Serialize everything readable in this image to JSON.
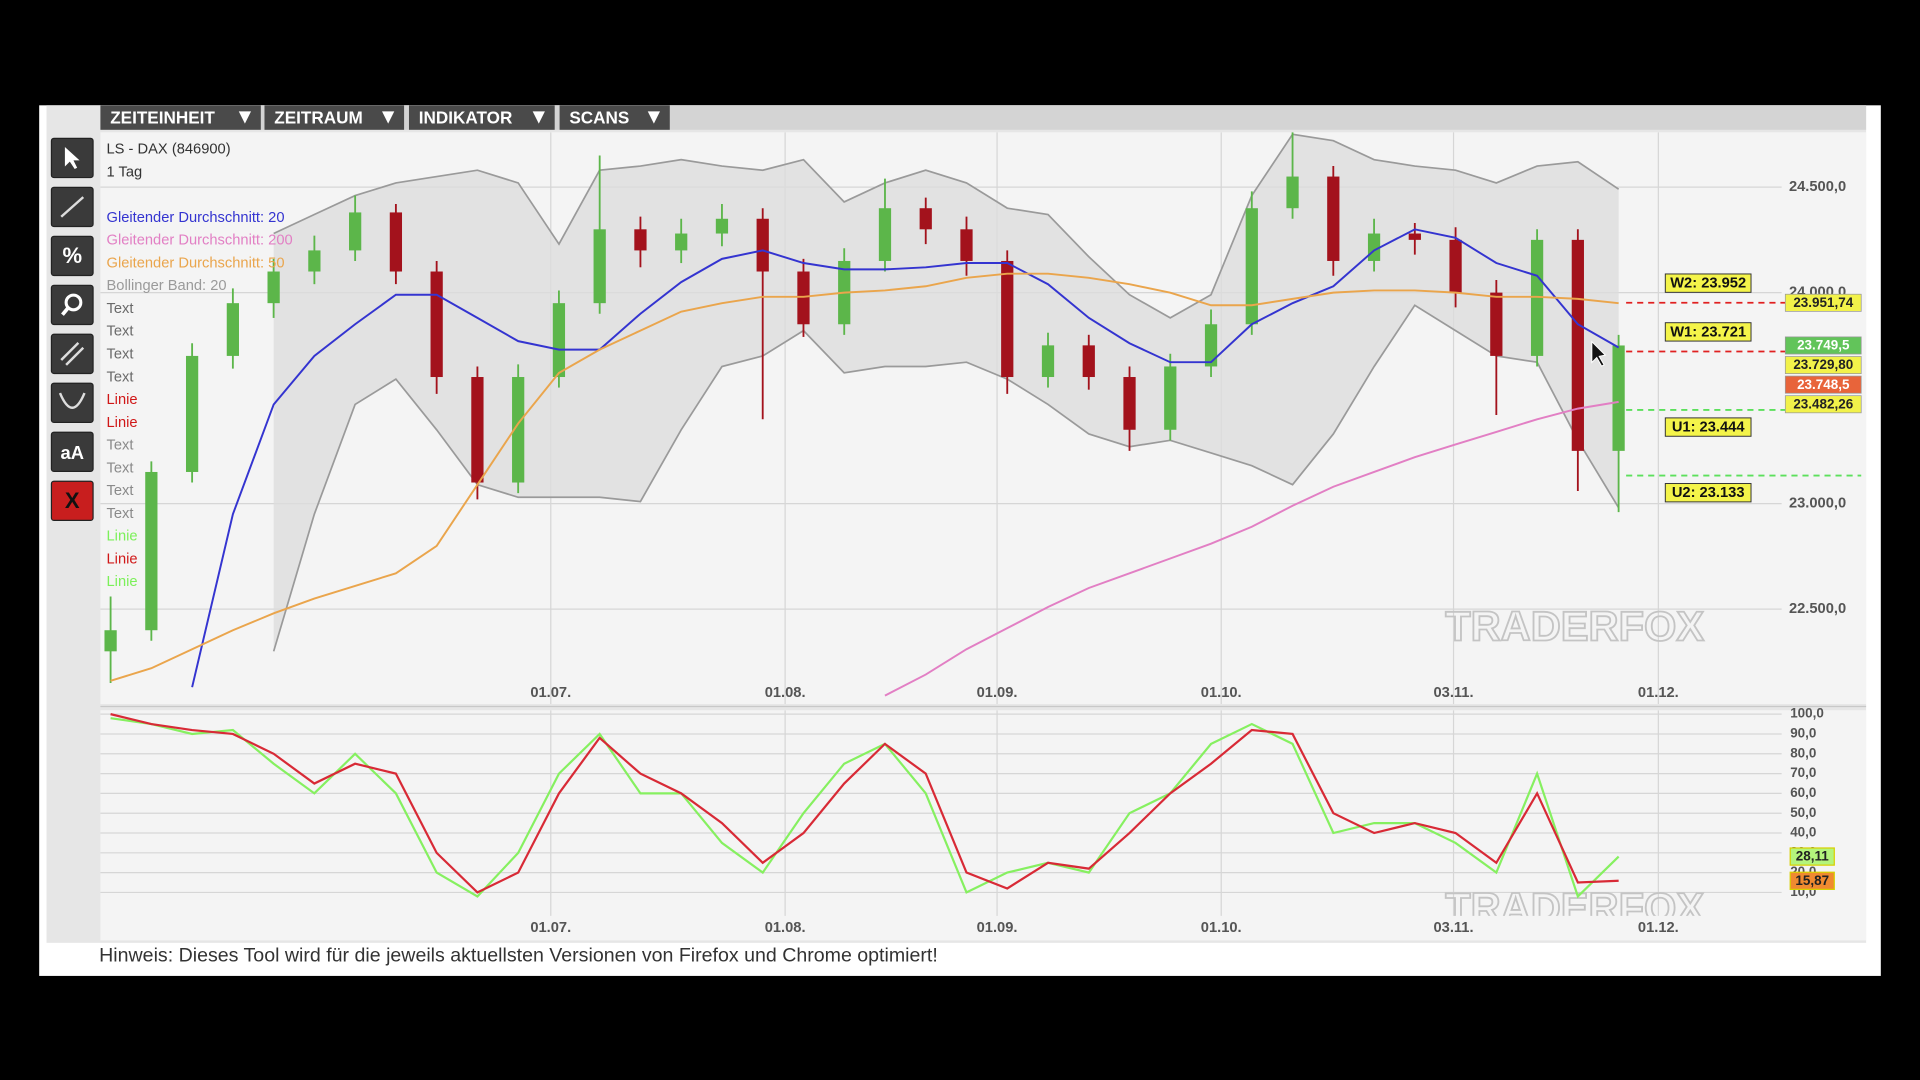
{
  "menu": [
    "ZEITEINHEIT",
    "ZEITRAUM",
    "INDIKATOR",
    "SCANS"
  ],
  "toolbar": {
    "percent": "%",
    "text": "aA",
    "close": "X"
  },
  "watermark": "TRADERFOX",
  "footer": "Hinweis: Dieses Tool wird für die jeweils aktuellsten Versionen von Firefox und Chrome optimiert!",
  "chart_data": [
    {
      "type": "candlestick",
      "title": "LS - DAX (846900)",
      "subtitle": "1 Tag",
      "x": [
        1,
        5,
        9,
        13,
        17,
        21,
        25,
        29,
        33,
        37,
        41,
        45,
        49,
        53,
        57,
        61,
        65,
        69,
        73,
        77,
        81,
        85,
        89,
        93,
        97,
        101,
        105,
        109,
        113,
        117,
        121,
        125,
        129,
        133,
        137,
        141,
        145,
        149
      ],
      "candles": [
        [
          22300,
          22560,
          22150,
          22400
        ],
        [
          22400,
          23200,
          22350,
          23150
        ],
        [
          23150,
          23760,
          23100,
          23700
        ],
        [
          23700,
          24020,
          23640,
          23950
        ],
        [
          23950,
          24160,
          23880,
          24100
        ],
        [
          24100,
          24270,
          24040,
          24200
        ],
        [
          24200,
          24460,
          24150,
          24380
        ],
        [
          24380,
          24420,
          24040,
          24100
        ],
        [
          24100,
          24150,
          23520,
          23600
        ],
        [
          23600,
          23650,
          23020,
          23100
        ],
        [
          23100,
          23660,
          23050,
          23600
        ],
        [
          23600,
          24010,
          23550,
          23950
        ],
        [
          23950,
          24650,
          23900,
          24300
        ],
        [
          24300,
          24360,
          24120,
          24200
        ],
        [
          24200,
          24350,
          24140,
          24280
        ],
        [
          24280,
          24420,
          24220,
          24350
        ],
        [
          24350,
          24400,
          23400,
          24100
        ],
        [
          24100,
          24160,
          23790,
          23850
        ],
        [
          23850,
          24210,
          23800,
          24150
        ],
        [
          24150,
          24540,
          24100,
          24400
        ],
        [
          24400,
          24450,
          24230,
          24300
        ],
        [
          24300,
          24360,
          24080,
          24150
        ],
        [
          24150,
          24200,
          23520,
          23600
        ],
        [
          23600,
          23810,
          23550,
          23750
        ],
        [
          23750,
          23800,
          23540,
          23600
        ],
        [
          23600,
          23650,
          23250,
          23350
        ],
        [
          23350,
          23710,
          23300,
          23650
        ],
        [
          23650,
          23920,
          23600,
          23850
        ],
        [
          23850,
          24480,
          23800,
          24400
        ],
        [
          24400,
          24760,
          24350,
          24550
        ],
        [
          24550,
          24600,
          24080,
          24150
        ],
        [
          24150,
          24350,
          24100,
          24280
        ],
        [
          24280,
          24330,
          24180,
          24250
        ],
        [
          24250,
          24310,
          23930,
          24000
        ],
        [
          24000,
          24060,
          23420,
          23700
        ],
        [
          23700,
          24300,
          23650,
          24250
        ],
        [
          24250,
          24300,
          23060,
          23250
        ],
        [
          23250,
          23800,
          22960,
          23749.5
        ]
      ],
      "up_color": "#5cb64a",
      "down_color": "#a3121c",
      "series": [
        {
          "name": "Gleitender Durchschnitt: 20",
          "color": "#3434d0",
          "values": [
            null,
            null,
            22130,
            22950,
            23470,
            23700,
            23850,
            23990,
            23990,
            23880,
            23770,
            23730,
            23730,
            23900,
            24050,
            24160,
            24200,
            24140,
            24110,
            24110,
            24120,
            24140,
            24140,
            24040,
            23880,
            23760,
            23670,
            23670,
            23850,
            23950,
            24030,
            24200,
            24300,
            24260,
            24140,
            24080,
            23850,
            23740
          ]
        },
        {
          "name": "Gleitender Durchschnitt: 200",
          "color": "#e27fc4",
          "values": [
            null,
            null,
            null,
            null,
            null,
            null,
            null,
            null,
            null,
            null,
            null,
            null,
            null,
            null,
            null,
            null,
            null,
            null,
            null,
            22090,
            22190,
            22310,
            22410,
            22510,
            22600,
            22670,
            22740,
            22810,
            22890,
            22990,
            23080,
            23150,
            23220,
            23280,
            23340,
            23400,
            23450,
            23482.26
          ]
        },
        {
          "name": "Gleitender Durchschnitt: 50",
          "color": "#eaa54c",
          "values": [
            22160,
            22220,
            22310,
            22400,
            22480,
            22550,
            22610,
            22670,
            22800,
            23090,
            23380,
            23620,
            23730,
            23820,
            23910,
            23950,
            23980,
            23980,
            24000,
            24010,
            24030,
            24070,
            24090,
            24090,
            24070,
            24040,
            24000,
            23940,
            23940,
            23970,
            24000,
            24010,
            24010,
            24000,
            23980,
            23980,
            23970,
            23950
          ]
        },
        {
          "name": "Bollinger Band: 20",
          "color": "#9a9a9a",
          "values": [
            null,
            null,
            null,
            null,
            24280,
            24370,
            24460,
            24520,
            24550,
            24580,
            24520,
            24230,
            24580,
            24600,
            24630,
            24600,
            24580,
            24630,
            24430,
            24520,
            24580,
            24520,
            24400,
            24370,
            24170,
            23990,
            23880,
            23990,
            24460,
            24750,
            24720,
            24630,
            24600,
            24580,
            24520,
            24600,
            24620,
            24490
          ],
          "lower": [
            null,
            null,
            null,
            null,
            22300,
            22950,
            23470,
            23590,
            23350,
            23090,
            23030,
            23030,
            23030,
            23010,
            23350,
            23650,
            23700,
            23820,
            23620,
            23650,
            23650,
            23670,
            23590,
            23470,
            23330,
            23270,
            23300,
            23240,
            23180,
            23090,
            23330,
            23650,
            23940,
            23820,
            23700,
            23670,
            23300,
            22980
          ]
        }
      ],
      "legend_extra": [
        {
          "name": "Text",
          "color": "#6a6a6a"
        },
        {
          "name": "Text",
          "color": "#6a6a6a"
        },
        {
          "name": "Text",
          "color": "#6a6a6a"
        },
        {
          "name": "Text",
          "color": "#6a6a6a"
        },
        {
          "name": "Linie",
          "color": "#d01818"
        },
        {
          "name": "Linie",
          "color": "#d01818"
        },
        {
          "name": "Text",
          "color": "#8a8a8a"
        },
        {
          "name": "Text",
          "color": "#8a8a8a"
        },
        {
          "name": "Text",
          "color": "#8a8a8a"
        },
        {
          "name": "Text",
          "color": "#8a8a8a"
        },
        {
          "name": "Linie",
          "color": "#7cf05a"
        },
        {
          "name": "Linie",
          "color": "#d01818"
        },
        {
          "name": "Linie",
          "color": "#7cf05a"
        }
      ],
      "hlines": [
        {
          "label": "W2: 23.952",
          "value": 23952,
          "color": "#e02020",
          "side": "above"
        },
        {
          "label": "W1: 23.721",
          "value": 23721,
          "color": "#e02020",
          "side": "above"
        },
        {
          "label": "U1: 23.444",
          "value": 23444,
          "color": "#5ce05c",
          "side": "below"
        },
        {
          "label": "U2: 23.133",
          "value": 23133,
          "color": "#5ce05c",
          "side": "below"
        }
      ],
      "price_tags": [
        {
          "value": 23951.74,
          "label": "23.951,74",
          "color": "#f2f24a"
        },
        {
          "value": 23749.5,
          "label": "23.749,5",
          "color": "#62c45a"
        },
        {
          "value": 23729.8,
          "label": "23.729,80",
          "color": "#f2f24a"
        },
        {
          "value": 23748.5,
          "label": "23.748,5",
          "color": "#e8643a"
        },
        {
          "value": 23482.26,
          "label": "23.482,26",
          "color": "#f2f24a"
        }
      ],
      "xlim": [
        0,
        165
      ],
      "ylim": [
        22050,
        24760
      ],
      "xticks": [
        {
          "value": 44.2,
          "label": "01.07."
        },
        {
          "value": 67.2,
          "label": "01.08."
        },
        {
          "value": 88,
          "label": "01.09."
        },
        {
          "value": 110,
          "label": "01.10."
        },
        {
          "value": 132.8,
          "label": "03.11."
        },
        {
          "value": 152.9,
          "label": "01.12."
        }
      ],
      "yticks": [
        {
          "value": 22500,
          "label": "22.500,0"
        },
        {
          "value": 23000,
          "label": "23.000,0"
        },
        {
          "value": 24000,
          "label": "24.000,0"
        },
        {
          "value": 24500,
          "label": "24.500,0"
        }
      ],
      "grid": true
    },
    {
      "type": "line",
      "x": [
        1,
        5,
        9,
        13,
        17,
        21,
        25,
        29,
        33,
        37,
        41,
        45,
        49,
        53,
        57,
        61,
        65,
        69,
        73,
        77,
        81,
        85,
        89,
        93,
        97,
        101,
        105,
        109,
        113,
        117,
        121,
        125,
        129,
        133,
        137,
        141,
        145,
        149
      ],
      "series": [
        {
          "color": "#86f060",
          "values": [
            98,
            95,
            90,
            92,
            75,
            60,
            80,
            60,
            20,
            8,
            30,
            70,
            90,
            60,
            60,
            35,
            20,
            50,
            75,
            85,
            60,
            10,
            20,
            25,
            20,
            50,
            60,
            85,
            95,
            85,
            40,
            45,
            45,
            35,
            20,
            70,
            8,
            28.11
          ]
        },
        {
          "color": "#d82a36",
          "values": [
            100,
            95,
            92,
            90,
            80,
            65,
            75,
            70,
            30,
            10,
            20,
            60,
            88,
            70,
            60,
            45,
            25,
            40,
            65,
            85,
            70,
            20,
            12,
            25,
            22,
            40,
            60,
            75,
            92,
            90,
            50,
            40,
            45,
            40,
            25,
            60,
            15,
            15.87
          ]
        }
      ],
      "tags": [
        {
          "value": 28.11,
          "label": "28,11",
          "color": "#b4f47c"
        },
        {
          "value": 15.87,
          "label": "15,87",
          "color": "#f08a30"
        }
      ],
      "xlim": [
        0,
        165
      ],
      "ylim": [
        0,
        102
      ],
      "xticks": [
        {
          "value": 44.2,
          "label": "01.07."
        },
        {
          "value": 67.2,
          "label": "01.08."
        },
        {
          "value": 88,
          "label": "01.09."
        },
        {
          "value": 110,
          "label": "01.10."
        },
        {
          "value": 132.8,
          "label": "03.11."
        },
        {
          "value": 152.9,
          "label": "01.12."
        }
      ],
      "yticks": [
        {
          "value": 10,
          "label": "10,0"
        },
        {
          "value": 20,
          "label": "20,0"
        },
        {
          "value": 30,
          "label": "30,0"
        },
        {
          "value": 40,
          "label": "40,0"
        },
        {
          "value": 50,
          "label": "50,0"
        },
        {
          "value": 60,
          "label": "60,0"
        },
        {
          "value": 70,
          "label": "70,0"
        },
        {
          "value": 80,
          "label": "80,0"
        },
        {
          "value": 90,
          "label": "90,0"
        },
        {
          "value": 100,
          "label": "100,0"
        }
      ],
      "grid": true
    }
  ]
}
